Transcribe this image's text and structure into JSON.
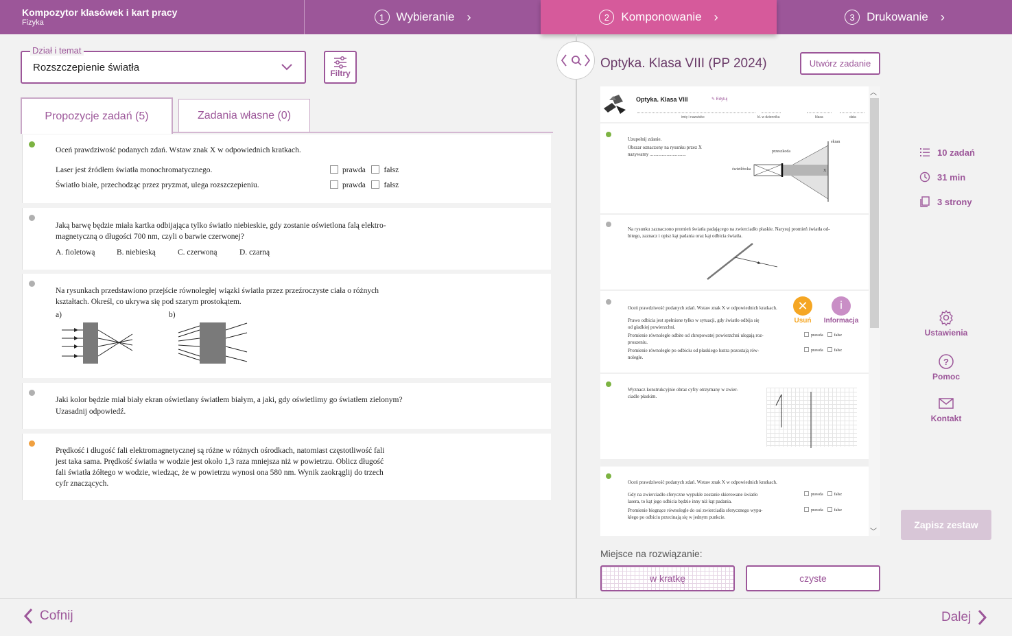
{
  "header": {
    "title": "Kompozytor klasówek i kart pracy",
    "subtitle": "Fizyka",
    "steps": [
      {
        "num": "1",
        "label": "Wybieranie"
      },
      {
        "num": "2",
        "label": "Komponowanie"
      },
      {
        "num": "3",
        "label": "Drukowanie"
      }
    ]
  },
  "filters": {
    "section_label": "Dział i temat",
    "section_value": "Rozszczepienie światła",
    "filter_button": "Filtry"
  },
  "tabs": {
    "proposals": "Propozycje zadań (5)",
    "own": "Zadania własne (0)"
  },
  "tasks": [
    {
      "dot_color": "#7cb342",
      "text": "Oceń prawdziwość podanych zdań. Wstaw znak X w odpowiednich kratkach.",
      "statements": [
        "Laser jest źródłem światła monochromatycznego.",
        "Światło białe, przechodząc przez pryzmat, ulega rozszczepieniu."
      ],
      "true_label": "prawda",
      "false_label": "fałsz"
    },
    {
      "dot_color": "#b0b0b0",
      "text_l1": "Jaką barwę będzie miała kartka odbijająca tylko światło niebieskie, gdy zostanie oświetlona falą elektro-",
      "text_l2": "magnetyczną o długości 700 nm, czyli o barwie czerwonej?",
      "options": [
        "A. fioletową",
        "B. niebieską",
        "C. czerwoną",
        "D. czarną"
      ]
    },
    {
      "dot_color": "#b0b0b0",
      "text_l1": "Na rysunkach przedstawiono przejście równoległej wiązki światła przez przeźroczyste ciała o różnych",
      "text_l2": "kształtach. Określ, co ukrywa się pod szarym prostokątem.",
      "fig_a": "a)",
      "fig_b": "b)"
    },
    {
      "dot_color": "#b0b0b0",
      "text_l1": "Jaki kolor będzie miał biały ekran oświetlany światłem białym, a jaki, gdy oświetlimy go światłem zielonym?",
      "text_l2": "Uzasadnij odpowiedź."
    },
    {
      "dot_color": "#f0a040",
      "text_l1": "Prędkość i długość fali elektromagnetycznej są różne w różnych ośrodkach, natomiast częstotliwość fali",
      "text_l2": "jest taka sama. Prędkość światła w wodzie jest około 1,3 raza mniejsza niż w powietrzu. Oblicz długość",
      "text_l3": "fali światła żółtego w wodzie, wiedząc, że w powietrzu wynosi ona 580 nm. Wynik zaokrąglij do trzech",
      "text_l4": "cyfr znaczących."
    }
  ],
  "preview": {
    "title": "Optyka. Klasa VIII (PP 2024)",
    "create_button": "Utwórz zadanie",
    "sheet_title": "Optyka. Klasa VIII",
    "edit_label": "Edytuj",
    "fields": [
      "imię i nazwisko",
      "kl. w dzienniku",
      "klasa",
      "data"
    ],
    "task1_l1": "Uzupełnij zdanie.",
    "task1_l2": "Obszar oznaczony na rysunku przez X",
    "task1_l3": "nazywamy ..............................",
    "task1_labels": {
      "screen": "ekran",
      "obstacle": "przeszkoda",
      "source": "świetlówka",
      "x": "X"
    },
    "task2_l1": "Na rysunku zaznaczono promień światła padającego na zwierciadło płaskie. Narysuj promień światła od-",
    "task2_l2": "bitego, zaznacz i opisz kąt padania oraz kąt odbicia światła.",
    "task3_l1": "Oceń prawdziwość podanych zdań. Wstaw znak X w odpowiednich kratkach.",
    "task3_s1a": "Prawo odbicia jest spełnione tylko w sytuacji, gdy światło odbija się",
    "task3_s1b": "od gładkiej powierzchni.",
    "task3_s2a": "Promienie równoległe odbite od chropowatej powierzchni ulegają roz-",
    "task3_s2b": "proszeniu.",
    "task3_s3a": "Promienie równoległe po odbiciu od płaskiego lustra pozostają rów-",
    "task3_s3b": "noległe.",
    "remove_label": "Usuń",
    "info_label": "Informacja",
    "info_icon": "i",
    "task4_l1": "Wyznacz konstrukcyjnie obraz cyfry otrzymany w zwier-",
    "task4_l2": "ciadle płaskim.",
    "task5_l1": "Oceń prawdziwość podanych zdań. Wstaw znak X w odpowiednich kratkach.",
    "task5_s1a": "Gdy na zwierciadło sferyczne wypukłe zostanie skierowane światło",
    "task5_s1b": "lasera, to kąt jego odbicia będzie inny niż kąt padania.",
    "task5_s2a": "Promienie biegnące równolegle do osi zwierciadła sferycznego wypu-",
    "task5_s2b": "kłego po odbiciu przecinają się w jednym punkcie.",
    "true_label": "prawda",
    "false_label": "fałsz"
  },
  "solution_space": {
    "label": "Miejsce na rozwiązanie:",
    "grid": "w kratkę",
    "clean": "czyste"
  },
  "stats": {
    "tasks": "10 zadań",
    "time": "31 min",
    "pages": "3 strony"
  },
  "sidebar": {
    "settings": "Ustawienia",
    "help": "Pomoc",
    "contact": "Kontakt"
  },
  "save_button": "Zapisz zestaw",
  "nav": {
    "back": "Cofnij",
    "next": "Dalej"
  }
}
